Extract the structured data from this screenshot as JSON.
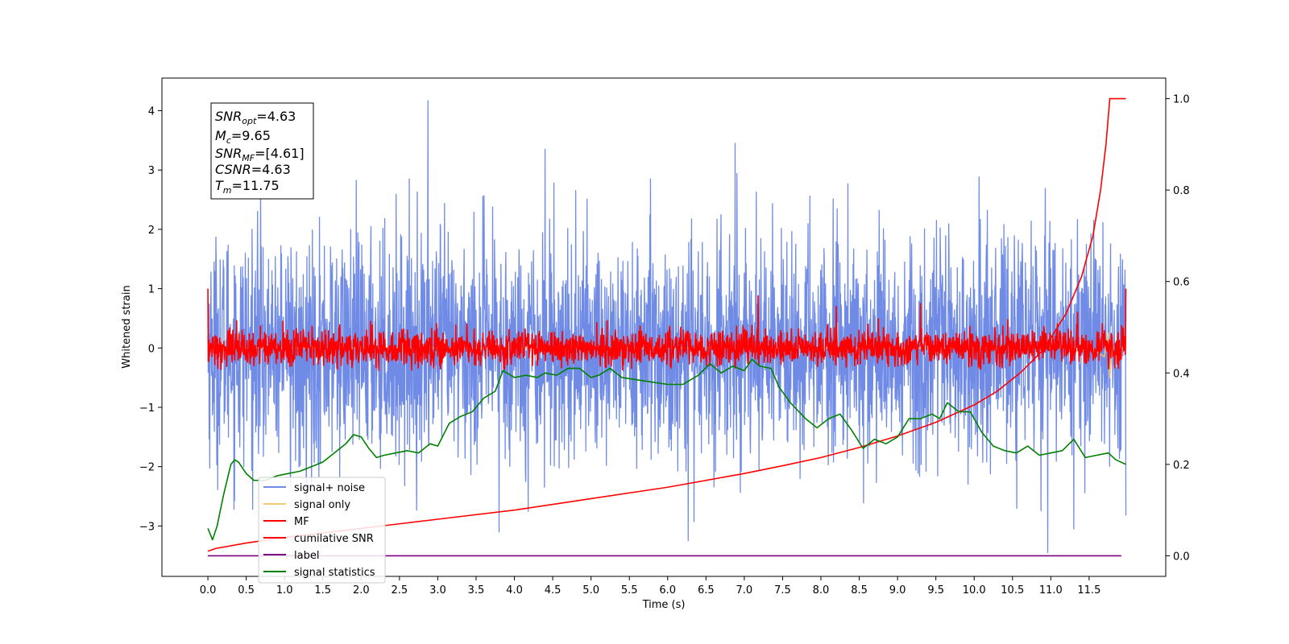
{
  "chart_data": {
    "type": "line",
    "title": "",
    "xlabel": "Time (s)",
    "ylabel": "Whitened strain",
    "xlim": [
      -0.6,
      12.5
    ],
    "ylim": [
      -3.85,
      4.55
    ],
    "y2lim": [
      -0.045,
      1.045
    ],
    "x_ticks": [
      0.0,
      0.5,
      1.0,
      1.5,
      2.0,
      2.5,
      3.0,
      3.5,
      4.0,
      4.5,
      5.0,
      5.5,
      6.0,
      6.5,
      7.0,
      7.5,
      8.0,
      8.5,
      9.0,
      9.5,
      10.0,
      10.5,
      11.0,
      11.5
    ],
    "x_tick_labels": [
      "0.0",
      "0.5",
      "1.0",
      "1.5",
      "2.0",
      "2.5",
      "3.0",
      "3.5",
      "4.0",
      "4.5",
      "5.0",
      "5.5",
      "6.0",
      "6.5",
      "7.0",
      "7.5",
      "8.0",
      "8.5",
      "9.0",
      "9.5",
      "10.0",
      "10.5",
      "11.0",
      "11.5"
    ],
    "y_ticks": [
      -3,
      -2,
      -1,
      0,
      1,
      2,
      3,
      4
    ],
    "y_tick_labels": [
      "−3",
      "−2",
      "−1",
      "0",
      "1",
      "2",
      "3",
      "4"
    ],
    "y2_ticks": [
      0.0,
      0.2,
      0.4,
      0.6,
      0.8,
      1.0
    ],
    "y2_tick_labels": [
      "0.0",
      "0.2",
      "0.4",
      "0.6",
      "0.8",
      "1.0"
    ],
    "grid": false,
    "legend_position": "lower-left",
    "series": [
      {
        "name": "signal+ noise",
        "axis": "left",
        "color": "#6f8be6",
        "noise": true,
        "t_range": [
          0.0,
          11.98
        ],
        "std": 0.95,
        "spikes": [
          [
            2.87,
            4.17
          ],
          [
            10.96,
            -3.45
          ],
          [
            6.27,
            -3.25
          ],
          [
            6.88,
            3.45
          ],
          [
            11.3,
            -3.05
          ],
          [
            4.4,
            3.35
          ],
          [
            3.8,
            -3.1
          ]
        ]
      },
      {
        "name": "signal only",
        "axis": "left",
        "color": "#f5c26b",
        "x": [
          0.0,
          11.0,
          11.5,
          11.7,
          11.75,
          11.77,
          11.8,
          11.98
        ],
        "y": [
          0.0,
          0.0,
          0.02,
          -0.15,
          0.25,
          -0.5,
          0.0,
          0.0
        ]
      },
      {
        "name": "MF",
        "axis": "left",
        "color": "#ff0000",
        "noise": true,
        "t_range": [
          0.0,
          11.98
        ],
        "std": 0.15,
        "start_value": 0.85,
        "end_value": 1.0,
        "spikes": [
          [
            7.18,
            0.88
          ],
          [
            0.0,
            1.0
          ],
          [
            11.98,
            1.0
          ],
          [
            11.35,
            0.6
          ],
          [
            9.3,
            0.75
          ],
          [
            8.2,
            0.7
          ]
        ]
      },
      {
        "name": "cumilative SNR",
        "axis": "right",
        "color": "#ff0000",
        "x": [
          0.0,
          0.1,
          0.5,
          1.0,
          2.0,
          3.0,
          4.0,
          5.0,
          6.0,
          7.0,
          7.5,
          8.0,
          8.5,
          9.0,
          9.5,
          10.0,
          10.3,
          10.6,
          10.9,
          11.2,
          11.4,
          11.55,
          11.65,
          11.72,
          11.77,
          11.98
        ],
        "y": [
          0.01,
          0.016,
          0.028,
          0.04,
          0.06,
          0.08,
          0.1,
          0.125,
          0.15,
          0.18,
          0.197,
          0.215,
          0.237,
          0.262,
          0.292,
          0.33,
          0.36,
          0.4,
          0.45,
          0.53,
          0.61,
          0.7,
          0.8,
          0.9,
          1.0,
          1.0
        ]
      },
      {
        "name": "label",
        "axis": "right",
        "color": "#800080",
        "x": [
          0.0,
          11.92
        ],
        "y": [
          0.0,
          0.0
        ]
      },
      {
        "name": "signal statistics",
        "axis": "right",
        "color": "#008000",
        "x": [
          0.0,
          0.06,
          0.12,
          0.2,
          0.3,
          0.35,
          0.4,
          0.5,
          0.6,
          0.75,
          0.9,
          1.05,
          1.2,
          1.35,
          1.5,
          1.65,
          1.8,
          1.9,
          2.0,
          2.1,
          2.2,
          2.3,
          2.45,
          2.6,
          2.75,
          2.9,
          3.0,
          3.15,
          3.3,
          3.45,
          3.6,
          3.75,
          3.85,
          4.0,
          4.15,
          4.3,
          4.4,
          4.55,
          4.7,
          4.85,
          5.0,
          5.1,
          5.25,
          5.4,
          5.6,
          5.8,
          6.0,
          6.2,
          6.4,
          6.55,
          6.7,
          6.85,
          7.0,
          7.1,
          7.2,
          7.35,
          7.45,
          7.6,
          7.8,
          7.95,
          8.1,
          8.25,
          8.4,
          8.55,
          8.7,
          8.85,
          9.0,
          9.15,
          9.3,
          9.45,
          9.5,
          9.55,
          9.65,
          9.8,
          9.95,
          10.1,
          10.25,
          10.4,
          10.55,
          10.7,
          10.85,
          11.0,
          11.15,
          11.3,
          11.45,
          11.6,
          11.75,
          11.85,
          11.98
        ],
        "y": [
          0.06,
          0.035,
          0.065,
          0.13,
          0.2,
          0.21,
          0.205,
          0.18,
          0.165,
          0.165,
          0.175,
          0.18,
          0.185,
          0.195,
          0.205,
          0.225,
          0.245,
          0.265,
          0.26,
          0.235,
          0.215,
          0.22,
          0.225,
          0.23,
          0.225,
          0.245,
          0.24,
          0.29,
          0.305,
          0.315,
          0.345,
          0.36,
          0.405,
          0.39,
          0.395,
          0.39,
          0.4,
          0.395,
          0.41,
          0.41,
          0.39,
          0.395,
          0.41,
          0.39,
          0.385,
          0.38,
          0.375,
          0.375,
          0.395,
          0.42,
          0.4,
          0.415,
          0.405,
          0.43,
          0.415,
          0.41,
          0.37,
          0.335,
          0.3,
          0.28,
          0.3,
          0.31,
          0.275,
          0.235,
          0.255,
          0.245,
          0.26,
          0.3,
          0.3,
          0.31,
          0.305,
          0.3,
          0.335,
          0.315,
          0.315,
          0.27,
          0.24,
          0.23,
          0.225,
          0.24,
          0.22,
          0.225,
          0.23,
          0.255,
          0.215,
          0.22,
          0.225,
          0.21,
          0.2
        ]
      }
    ],
    "annotation_lines": [
      {
        "sym": "SNR",
        "sub": "opt",
        "val": "=4.63"
      },
      {
        "sym": "M",
        "sub": "c",
        "val": "=9.65"
      },
      {
        "sym": "SNR",
        "sub": "MF",
        "val": "=[4.61]"
      },
      {
        "sym": "CSNR",
        "sub": "",
        "val": "=4.63"
      },
      {
        "sym": "T",
        "sub": "m",
        "val": "=11.75"
      }
    ]
  }
}
